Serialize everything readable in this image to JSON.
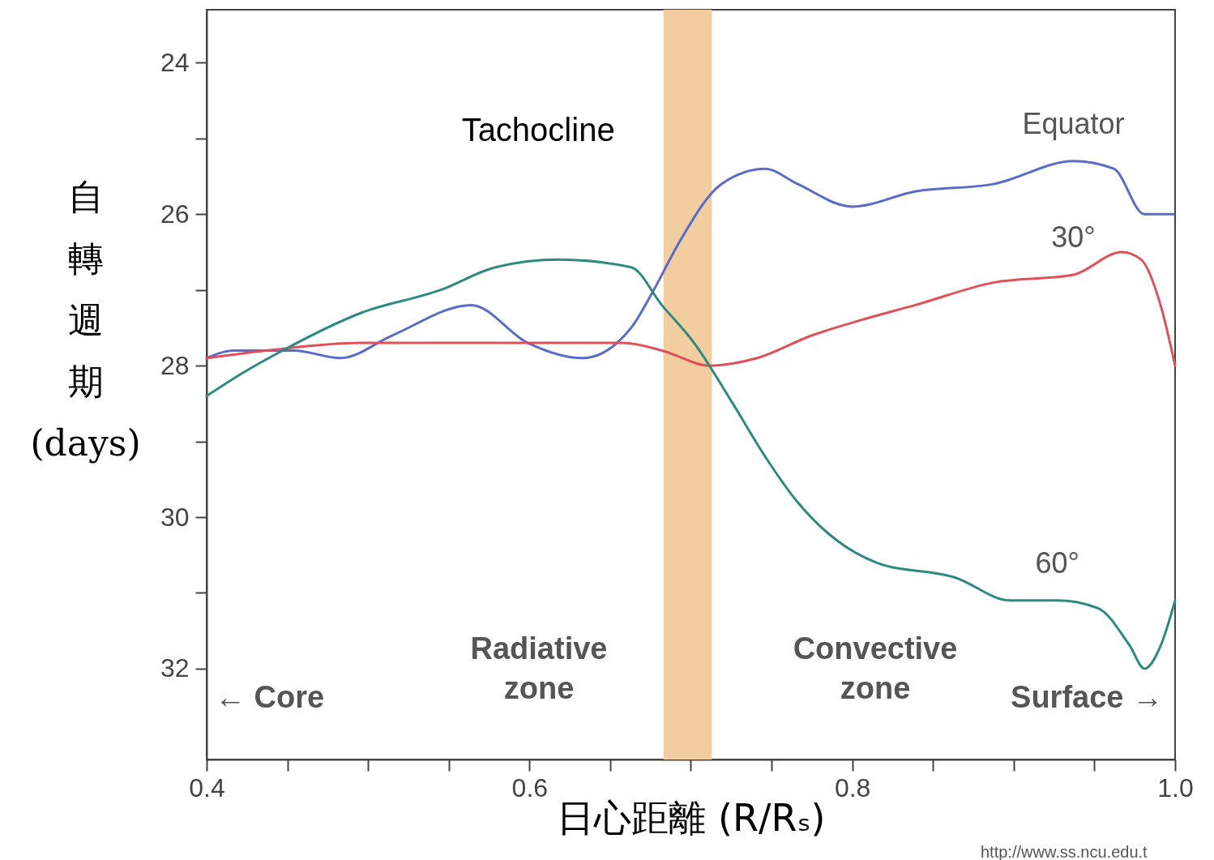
{
  "chart_data": {
    "type": "line",
    "xlabel": "日心距離 (R/Rₛ)",
    "ylabel": "自轉週期 (days)",
    "xlim": [
      0.4,
      1.0
    ],
    "xticks": [
      0.4,
      {
        "value": 0.45,
        "label": null
      },
      {
        "value": 0.5,
        "label": null
      },
      {
        "value": 0.55,
        "label": null
      },
      0.6,
      {
        "value": 0.65,
        "label": null
      },
      {
        "value": 0.7,
        "label": null
      },
      {
        "value": 0.75,
        "label": null
      },
      0.8,
      {
        "value": 0.85,
        "label": null
      },
      {
        "value": 0.9,
        "label": null
      },
      {
        "value": 0.95,
        "label": null
      },
      {
        "value": 1.0,
        "label": "1.0"
      }
    ],
    "ylim": [
      33.2,
      23.3
    ],
    "yticks": [
      24,
      {
        "value": 25,
        "label": null
      },
      26,
      {
        "value": 27,
        "label": null
      },
      28,
      {
        "value": 29,
        "label": null
      },
      30,
      {
        "value": 31,
        "label": null
      },
      32
    ],
    "grid": false,
    "legend": false,
    "marker": "none",
    "line_style": "solid",
    "series": [
      {
        "name": "Equator",
        "color": "#5a6cc8",
        "x": [
          0.4,
          0.417,
          0.454,
          0.483,
          0.515,
          0.564,
          0.599,
          0.633,
          0.663,
          0.677,
          0.692,
          0.719,
          0.746,
          0.766,
          0.8,
          0.839,
          0.888,
          0.937,
          0.962,
          0.981,
          0.999
        ],
        "values": [
          27.9,
          27.8,
          27.8,
          27.9,
          27.6,
          27.2,
          27.7,
          27.9,
          27.5,
          27.0,
          26.4,
          25.6,
          25.4,
          25.6,
          25.9,
          25.7,
          25.6,
          25.3,
          25.4,
          26.0,
          26.0
        ]
      },
      {
        "name": "30°",
        "color": "#e0505a",
        "x": [
          0.4,
          0.437,
          0.496,
          0.545,
          0.594,
          0.658,
          0.682,
          0.712,
          0.741,
          0.775,
          0.805,
          0.839,
          0.888,
          0.937,
          0.967,
          0.979,
          0.991,
          1.0
        ],
        "values": [
          27.9,
          27.8,
          27.7,
          27.7,
          27.7,
          27.7,
          27.8,
          28.0,
          27.9,
          27.6,
          27.4,
          27.2,
          26.9,
          26.8,
          26.5,
          26.6,
          27.2,
          28.0
        ]
      },
      {
        "name": "60°",
        "color": "#2e8a80",
        "x": [
          0.4,
          0.422,
          0.447,
          0.496,
          0.545,
          0.579,
          0.618,
          0.663,
          0.682,
          0.702,
          0.726,
          0.746,
          0.766,
          0.79,
          0.815,
          0.864,
          0.898,
          0.927,
          0.952,
          0.972,
          0.981,
          0.991,
          1.0
        ],
        "values": [
          28.4,
          28.1,
          27.8,
          27.3,
          27.0,
          26.7,
          26.6,
          26.7,
          27.2,
          27.7,
          28.5,
          29.2,
          29.8,
          30.3,
          30.6,
          30.8,
          31.1,
          31.1,
          31.2,
          31.7,
          32.0,
          31.7,
          31.1
        ]
      }
    ],
    "bands": [
      {
        "axis": "x",
        "from": 0.683,
        "to": 0.713,
        "label": "Tachocline",
        "color": "#f2cd9f"
      }
    ],
    "annotations": [
      "← Core",
      "Radiative zone",
      "Convective zone",
      "Surface →",
      "http://www.ss.ncu.edu.t"
    ]
  }
}
